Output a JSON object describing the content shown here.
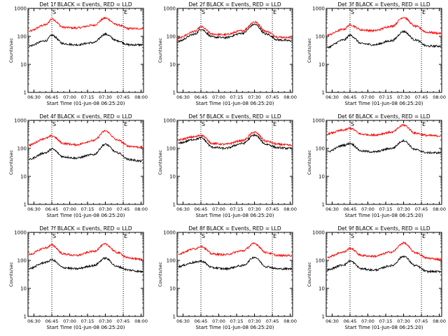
{
  "chart_data": [
    {
      "type": "line",
      "title": "Det 1f BLACK = Events, RED = LLD",
      "xlabel": "Start Time (01-Jun-08 06:25:20)",
      "ylabel": "Counts/sec",
      "yscale": "log",
      "ylim": [
        1,
        1000
      ],
      "x_ticks": [
        "06:30",
        "06:45",
        "07:00",
        "07:15",
        "07:30",
        "07:45",
        "08:00"
      ],
      "y_ticks": [
        "1",
        "10",
        "100",
        "1000"
      ],
      "markers": [
        "06:45",
        "07:45"
      ],
      "marker_labels": [
        "S",
        "E"
      ],
      "series": [
        {
          "color": "#ff0000",
          "x": [
            "06:25",
            "06:40",
            "06:45",
            "06:55",
            "07:05",
            "07:20",
            "07:30",
            "07:40",
            "07:50",
            "08:00"
          ],
          "y": [
            150,
            260,
            420,
            210,
            200,
            250,
            450,
            260,
            190,
            190
          ]
        },
        {
          "color": "#000000",
          "x": [
            "06:25",
            "06:40",
            "06:45",
            "06:55",
            "07:05",
            "07:20",
            "07:30",
            "07:40",
            "07:50",
            "08:00"
          ],
          "y": [
            45,
            70,
            110,
            55,
            50,
            60,
            120,
            70,
            50,
            50
          ]
        }
      ]
    },
    {
      "type": "line",
      "title": "Det 2f BLACK = Events, RED = LLD",
      "xlabel": "Start Time (01-Jun-08 06:25:20)",
      "ylabel": "Counts/sec",
      "yscale": "log",
      "ylim": [
        1,
        1000
      ],
      "x_ticks": [
        "06:30",
        "06:45",
        "07:00",
        "07:15",
        "07:30",
        "07:45",
        "08:00"
      ],
      "y_ticks": [
        "1",
        "10",
        "100",
        "1000"
      ],
      "markers": [
        "06:45",
        "07:45"
      ],
      "marker_labels": [
        "S",
        "E"
      ],
      "series": [
        {
          "color": "#ff0000",
          "x": [
            "06:25",
            "06:40",
            "06:45",
            "06:55",
            "07:05",
            "07:20",
            "07:30",
            "07:40",
            "07:50",
            "08:00"
          ],
          "y": [
            85,
            150,
            220,
            120,
            115,
            160,
            330,
            150,
            95,
            90
          ]
        },
        {
          "color": "#000000",
          "x": [
            "06:25",
            "06:40",
            "06:45",
            "06:55",
            "07:05",
            "07:20",
            "07:30",
            "07:40",
            "07:50",
            "08:00"
          ],
          "y": [
            65,
            120,
            180,
            95,
            90,
            130,
            270,
            120,
            75,
            70
          ]
        }
      ]
    },
    {
      "type": "line",
      "title": "Det 3f BLACK = Events, RED = LLD",
      "xlabel": "Start Time (01-Jun-08 06:25:20)",
      "ylabel": "Counts/sec",
      "yscale": "log",
      "ylim": [
        1,
        1000
      ],
      "x_ticks": [
        "06:30",
        "06:45",
        "07:00",
        "07:15",
        "07:30",
        "07:45",
        "08:00"
      ],
      "y_ticks": [
        "1",
        "10",
        "100",
        "1000"
      ],
      "markers": [
        "06:45",
        "07:45"
      ],
      "marker_labels": [
        "S",
        "E"
      ],
      "series": [
        {
          "color": "#ff0000",
          "x": [
            "06:25",
            "06:40",
            "06:45",
            "06:55",
            "07:05",
            "07:20",
            "07:30",
            "07:40",
            "07:50",
            "08:00"
          ],
          "y": [
            110,
            180,
            260,
            170,
            160,
            230,
            480,
            230,
            140,
            130
          ]
        },
        {
          "color": "#000000",
          "x": [
            "06:25",
            "06:40",
            "06:45",
            "06:55",
            "07:05",
            "07:20",
            "07:30",
            "07:40",
            "07:50",
            "08:00"
          ],
          "y": [
            40,
            75,
            110,
            55,
            50,
            70,
            150,
            75,
            45,
            45
          ]
        }
      ]
    },
    {
      "type": "line",
      "title": "Det 4f BLACK = Events, RED = LLD",
      "xlabel": "Start Time (01-Jun-08 06:25:20)",
      "ylabel": "Counts/sec",
      "yscale": "log",
      "ylim": [
        1,
        1000
      ],
      "x_ticks": [
        "06:30",
        "06:45",
        "07:00",
        "07:15",
        "07:30",
        "07:45",
        "08:00"
      ],
      "y_ticks": [
        "1",
        "10",
        "100",
        "1000"
      ],
      "markers": [
        "06:45",
        "07:45"
      ],
      "marker_labels": [
        "S",
        "E"
      ],
      "series": [
        {
          "color": "#ff0000",
          "x": [
            "06:25",
            "06:40",
            "06:45",
            "06:55",
            "07:05",
            "07:20",
            "07:30",
            "07:40",
            "07:50",
            "08:00"
          ],
          "y": [
            130,
            230,
            280,
            150,
            135,
            190,
            420,
            200,
            120,
            110
          ]
        },
        {
          "color": "#000000",
          "x": [
            "06:25",
            "06:40",
            "06:45",
            "06:55",
            "07:05",
            "07:20",
            "07:30",
            "07:40",
            "07:50",
            "08:00"
          ],
          "y": [
            40,
            70,
            95,
            50,
            45,
            60,
            140,
            70,
            40,
            35
          ]
        }
      ]
    },
    {
      "type": "line",
      "title": "Det 5f BLACK = Events, RED = LLD",
      "xlabel": "Start Time (01-Jun-08 06:25:20)",
      "ylabel": "Counts/sec",
      "yscale": "log",
      "ylim": [
        1,
        1000
      ],
      "x_ticks": [
        "06:30",
        "06:45",
        "07:00",
        "07:15",
        "07:30",
        "07:45",
        "08:00"
      ],
      "y_ticks": [
        "1",
        "10",
        "100",
        "1000"
      ],
      "markers": [
        "06:45",
        "07:45"
      ],
      "marker_labels": [
        "S",
        "E"
      ],
      "series": [
        {
          "color": "#ff0000",
          "x": [
            "06:25",
            "06:40",
            "06:45",
            "06:55",
            "07:05",
            "07:20",
            "07:30",
            "07:40",
            "07:50",
            "08:00"
          ],
          "y": [
            200,
            260,
            300,
            150,
            140,
            190,
            380,
            180,
            140,
            130
          ]
        },
        {
          "color": "#000000",
          "x": [
            "06:25",
            "06:40",
            "06:45",
            "06:55",
            "07:05",
            "07:20",
            "07:30",
            "07:40",
            "07:50",
            "08:00"
          ],
          "y": [
            150,
            210,
            240,
            110,
            100,
            150,
            300,
            140,
            105,
            100
          ]
        }
      ]
    },
    {
      "type": "line",
      "title": "Det 6f BLACK = Events, RED = LLD",
      "xlabel": "Start Time (01-Jun-08 06:25:20)",
      "ylabel": "Counts/sec",
      "yscale": "log",
      "ylim": [
        1,
        1000
      ],
      "x_ticks": [
        "06:30",
        "06:45",
        "07:00",
        "07:15",
        "07:30",
        "07:45",
        "08:00"
      ],
      "y_ticks": [
        "1",
        "10",
        "100",
        "1000"
      ],
      "markers": [
        "06:45",
        "07:45"
      ],
      "marker_labels": [
        "S",
        "E"
      ],
      "series": [
        {
          "color": "#ff0000",
          "x": [
            "06:25",
            "06:40",
            "06:45",
            "06:55",
            "07:05",
            "07:20",
            "07:30",
            "07:40",
            "07:50",
            "08:00"
          ],
          "y": [
            330,
            450,
            520,
            320,
            300,
            380,
            680,
            350,
            290,
            280
          ]
        },
        {
          "color": "#000000",
          "x": [
            "06:25",
            "06:40",
            "06:45",
            "06:55",
            "07:05",
            "07:20",
            "07:30",
            "07:40",
            "07:50",
            "08:00"
          ],
          "y": [
            75,
            130,
            150,
            80,
            75,
            100,
            190,
            90,
            70,
            70
          ]
        }
      ]
    },
    {
      "type": "line",
      "title": "Det 7f BLACK = Events, RED = LLD",
      "xlabel": "Start Time (01-Jun-08 06:25:20)",
      "ylabel": "Counts/sec",
      "yscale": "log",
      "ylim": [
        1,
        1000
      ],
      "x_ticks": [
        "06:30",
        "06:45",
        "07:00",
        "07:15",
        "07:30",
        "07:45",
        "08:00"
      ],
      "y_ticks": [
        "1",
        "10",
        "100",
        "1000"
      ],
      "markers": [
        "06:45",
        "07:45"
      ],
      "marker_labels": [
        "S",
        "E"
      ],
      "series": [
        {
          "color": "#ff0000",
          "x": [
            "06:25",
            "06:40",
            "06:45",
            "06:55",
            "07:05",
            "07:20",
            "07:30",
            "07:40",
            "07:50",
            "08:00"
          ],
          "y": [
            160,
            280,
            350,
            170,
            150,
            210,
            380,
            190,
            120,
            110
          ]
        },
        {
          "color": "#000000",
          "x": [
            "06:25",
            "06:40",
            "06:45",
            "06:55",
            "07:05",
            "07:20",
            "07:30",
            "07:40",
            "07:50",
            "08:00"
          ],
          "y": [
            50,
            85,
            105,
            55,
            50,
            65,
            120,
            60,
            45,
            40
          ]
        }
      ]
    },
    {
      "type": "line",
      "title": "Det 8f BLACK = Events, RED = LLD",
      "xlabel": "Start Time (01-Jun-08 06:25:20)",
      "ylabel": "Counts/sec",
      "yscale": "log",
      "ylim": [
        1,
        1000
      ],
      "x_ticks": [
        "06:30",
        "06:45",
        "07:00",
        "07:15",
        "07:30",
        "07:45",
        "08:00"
      ],
      "y_ticks": [
        "1",
        "10",
        "100",
        "1000"
      ],
      "markers": [
        "06:45",
        "07:45"
      ],
      "marker_labels": [
        "S",
        "E"
      ],
      "series": [
        {
          "color": "#ff0000",
          "x": [
            "06:25",
            "06:40",
            "06:45",
            "06:55",
            "07:05",
            "07:20",
            "07:30",
            "07:40",
            "07:50",
            "08:00"
          ],
          "y": [
            170,
            260,
            320,
            170,
            160,
            220,
            400,
            190,
            150,
            150
          ]
        },
        {
          "color": "#000000",
          "x": [
            "06:25",
            "06:40",
            "06:45",
            "06:55",
            "07:05",
            "07:20",
            "07:30",
            "07:40",
            "07:50",
            "08:00"
          ],
          "y": [
            60,
            85,
            95,
            55,
            50,
            65,
            130,
            60,
            50,
            50
          ]
        }
      ]
    },
    {
      "type": "line",
      "title": "Det 9f BLACK = Events, RED = LLD",
      "xlabel": "Start Time (01-Jun-08 06:25:20)",
      "ylabel": "Counts/sec",
      "yscale": "log",
      "ylim": [
        1,
        1000
      ],
      "x_ticks": [
        "06:30",
        "06:45",
        "07:00",
        "07:15",
        "07:30",
        "07:45",
        "08:00"
      ],
      "y_ticks": [
        "1",
        "10",
        "100",
        "1000"
      ],
      "markers": [
        "06:45",
        "07:45"
      ],
      "marker_labels": [
        "S",
        "E"
      ],
      "series": [
        {
          "color": "#ff0000",
          "x": [
            "06:25",
            "06:40",
            "06:45",
            "06:55",
            "07:05",
            "07:20",
            "07:30",
            "07:40",
            "07:50",
            "08:00"
          ],
          "y": [
            130,
            200,
            270,
            150,
            140,
            200,
            420,
            190,
            120,
            110
          ]
        },
        {
          "color": "#000000",
          "x": [
            "06:25",
            "06:40",
            "06:45",
            "06:55",
            "07:05",
            "07:20",
            "07:30",
            "07:40",
            "07:50",
            "08:00"
          ],
          "y": [
            45,
            70,
            95,
            50,
            45,
            65,
            140,
            65,
            40,
            40
          ]
        }
      ]
    }
  ]
}
